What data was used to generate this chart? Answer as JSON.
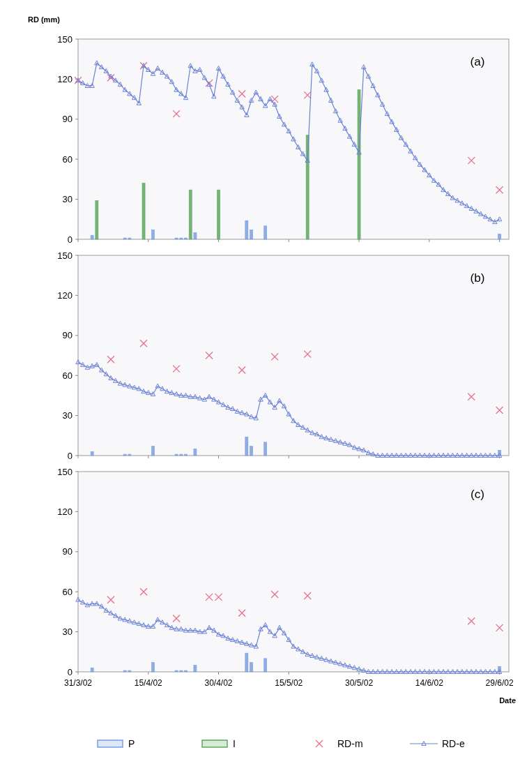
{
  "chart_data": [
    {
      "type": "line",
      "ylabel": "RD (mm)",
      "annotations": [
        "(a)"
      ],
      "xlim": [
        "2002-03-31",
        "2002-07-01"
      ],
      "xticks": [
        {
          "value": "2002-03-31",
          "label": null
        },
        {
          "value": "2002-04-15",
          "label": null
        },
        {
          "value": "2002-04-30",
          "label": null
        },
        {
          "value": "2002-05-15",
          "label": null
        },
        {
          "value": "2002-05-30",
          "label": null
        },
        {
          "value": "2002-06-14",
          "label": null
        },
        {
          "value": "2002-06-29",
          "label": null
        }
      ],
      "ylim": [
        0,
        150
      ],
      "yticks": [
        0,
        30,
        60,
        90,
        120,
        150
      ],
      "tick_labels": "y",
      "legend": "bottom",
      "x": [
        "2002-03-31",
        "2002-04-01",
        "2002-04-02",
        "2002-04-03",
        "2002-04-04",
        "2002-04-05",
        "2002-04-06",
        "2002-04-07",
        "2002-04-08",
        "2002-04-09",
        "2002-04-10",
        "2002-04-11",
        "2002-04-12",
        "2002-04-13",
        "2002-04-14",
        "2002-04-15",
        "2002-04-16",
        "2002-04-17",
        "2002-04-18",
        "2002-04-19",
        "2002-04-20",
        "2002-04-21",
        "2002-04-22",
        "2002-04-23",
        "2002-04-24",
        "2002-04-25",
        "2002-04-26",
        "2002-04-27",
        "2002-04-28",
        "2002-04-29",
        "2002-04-30",
        "2002-05-01",
        "2002-05-02",
        "2002-05-03",
        "2002-05-04",
        "2002-05-05",
        "2002-05-06",
        "2002-05-07",
        "2002-05-08",
        "2002-05-09",
        "2002-05-10",
        "2002-05-11",
        "2002-05-12",
        "2002-05-13",
        "2002-05-14",
        "2002-05-15",
        "2002-05-16",
        "2002-05-17",
        "2002-05-18",
        "2002-05-19",
        "2002-05-20",
        "2002-05-21",
        "2002-05-22",
        "2002-05-23",
        "2002-05-24",
        "2002-05-25",
        "2002-05-26",
        "2002-05-27",
        "2002-05-28",
        "2002-05-29",
        "2002-05-30",
        "2002-05-31",
        "2002-06-01",
        "2002-06-02",
        "2002-06-03",
        "2002-06-04",
        "2002-06-05",
        "2002-06-06",
        "2002-06-07",
        "2002-06-08",
        "2002-06-09",
        "2002-06-10",
        "2002-06-11",
        "2002-06-12",
        "2002-06-13",
        "2002-06-14",
        "2002-06-15",
        "2002-06-16",
        "2002-06-17",
        "2002-06-18",
        "2002-06-19",
        "2002-06-20",
        "2002-06-21",
        "2002-06-22",
        "2002-06-23",
        "2002-06-24",
        "2002-06-25",
        "2002-06-26",
        "2002-06-27",
        "2002-06-28",
        "2002-06-29"
      ],
      "series": [
        {
          "name": "P",
          "type": "bar",
          "color": "#7b9fe0",
          "x": [
            "2002-04-03",
            "2002-04-10",
            "2002-04-11",
            "2002-04-16",
            "2002-04-21",
            "2002-04-22",
            "2002-04-23",
            "2002-04-25",
            "2002-05-06",
            "2002-05-07",
            "2002-05-10",
            "2002-06-29"
          ],
          "values": [
            3,
            1,
            1,
            7,
            1,
            1,
            1,
            5,
            14,
            7,
            10,
            4
          ]
        },
        {
          "name": "I",
          "type": "bar",
          "color": "#5ea85e",
          "x": [
            "2002-04-04",
            "2002-04-14",
            "2002-04-24",
            "2002-04-30",
            "2002-05-19",
            "2002-05-30"
          ],
          "values": [
            29,
            42,
            37,
            37,
            78,
            112
          ]
        },
        {
          "name": "RD-m",
          "type": "scatter",
          "marker": "cross",
          "color": "#e8708c",
          "x": [
            "2002-03-31",
            "2002-04-07",
            "2002-04-14",
            "2002-04-21",
            "2002-04-28",
            "2002-05-05",
            "2002-05-12",
            "2002-05-19",
            "2002-06-23",
            "2002-06-29"
          ],
          "values": [
            119,
            121,
            130,
            94,
            117,
            109,
            105,
            108,
            59,
            37
          ]
        },
        {
          "name": "RD-e",
          "type": "line",
          "marker": "triangle",
          "color": "#6a82d4",
          "values": [
            119,
            117,
            115,
            115,
            132,
            129,
            126,
            122,
            119,
            116,
            112,
            109,
            106,
            102,
            130,
            127,
            124,
            128,
            125,
            122,
            118,
            112,
            109,
            106,
            130,
            126,
            127,
            121,
            116,
            107,
            128,
            122,
            116,
            110,
            104,
            99,
            93,
            104,
            110,
            105,
            100,
            105,
            101,
            92,
            86,
            81,
            75,
            69,
            64,
            59,
            131,
            126,
            119,
            112,
            104,
            96,
            89,
            83,
            77,
            71,
            65,
            129,
            122,
            115,
            108,
            101,
            94,
            88,
            82,
            76,
            71,
            66,
            61,
            56,
            52,
            48,
            44,
            41,
            37,
            34,
            31,
            29,
            27,
            25,
            23,
            21,
            19,
            17,
            15,
            13,
            15
          ]
        }
      ]
    },
    {
      "type": "line",
      "annotations": [
        "(b)"
      ],
      "xlim": [
        "2002-03-31",
        "2002-07-01"
      ],
      "xticks": [
        {
          "value": "2002-03-31",
          "label": null
        },
        {
          "value": "2002-04-15",
          "label": null
        },
        {
          "value": "2002-04-30",
          "label": null
        },
        {
          "value": "2002-05-15",
          "label": null
        },
        {
          "value": "2002-05-30",
          "label": null
        },
        {
          "value": "2002-06-14",
          "label": null
        },
        {
          "value": "2002-06-29",
          "label": null
        }
      ],
      "ylim": [
        0,
        150
      ],
      "yticks": [
        0,
        30,
        60,
        90,
        120,
        150
      ],
      "tick_labels": "y",
      "x": [
        "2002-03-31",
        "2002-04-01",
        "2002-04-02",
        "2002-04-03",
        "2002-04-04",
        "2002-04-05",
        "2002-04-06",
        "2002-04-07",
        "2002-04-08",
        "2002-04-09",
        "2002-04-10",
        "2002-04-11",
        "2002-04-12",
        "2002-04-13",
        "2002-04-14",
        "2002-04-15",
        "2002-04-16",
        "2002-04-17",
        "2002-04-18",
        "2002-04-19",
        "2002-04-20",
        "2002-04-21",
        "2002-04-22",
        "2002-04-23",
        "2002-04-24",
        "2002-04-25",
        "2002-04-26",
        "2002-04-27",
        "2002-04-28",
        "2002-04-29",
        "2002-04-30",
        "2002-05-01",
        "2002-05-02",
        "2002-05-03",
        "2002-05-04",
        "2002-05-05",
        "2002-05-06",
        "2002-05-07",
        "2002-05-08",
        "2002-05-09",
        "2002-05-10",
        "2002-05-11",
        "2002-05-12",
        "2002-05-13",
        "2002-05-14",
        "2002-05-15",
        "2002-05-16",
        "2002-05-17",
        "2002-05-18",
        "2002-05-19",
        "2002-05-20",
        "2002-05-21",
        "2002-05-22",
        "2002-05-23",
        "2002-05-24",
        "2002-05-25",
        "2002-05-26",
        "2002-05-27",
        "2002-05-28",
        "2002-05-29",
        "2002-05-30",
        "2002-05-31",
        "2002-06-01",
        "2002-06-02",
        "2002-06-03",
        "2002-06-04",
        "2002-06-05",
        "2002-06-06",
        "2002-06-07",
        "2002-06-08",
        "2002-06-09",
        "2002-06-10",
        "2002-06-11",
        "2002-06-12",
        "2002-06-13",
        "2002-06-14",
        "2002-06-15",
        "2002-06-16",
        "2002-06-17",
        "2002-06-18",
        "2002-06-19",
        "2002-06-20",
        "2002-06-21",
        "2002-06-22",
        "2002-06-23",
        "2002-06-24",
        "2002-06-25",
        "2002-06-26",
        "2002-06-27",
        "2002-06-28",
        "2002-06-29"
      ],
      "series": [
        {
          "type": "bar",
          "color": "#7b9fe0",
          "x": [
            "2002-04-03",
            "2002-04-10",
            "2002-04-11",
            "2002-04-16",
            "2002-04-21",
            "2002-04-22",
            "2002-04-23",
            "2002-04-25",
            "2002-05-06",
            "2002-05-07",
            "2002-05-10",
            "2002-06-29"
          ],
          "values": [
            3,
            1,
            1,
            7,
            1,
            1,
            1,
            5,
            14,
            7,
            10,
            4
          ]
        },
        {
          "type": "scatter",
          "marker": "cross",
          "color": "#e8708c",
          "x": [
            "2002-04-07",
            "2002-04-14",
            "2002-04-21",
            "2002-04-28",
            "2002-05-05",
            "2002-05-12",
            "2002-05-19",
            "2002-06-23",
            "2002-06-29"
          ],
          "values": [
            72,
            84,
            65,
            75,
            64,
            74,
            76,
            44,
            34
          ]
        },
        {
          "type": "line",
          "marker": "triangle",
          "color": "#6a82d4",
          "values": [
            70,
            68,
            66,
            67,
            68,
            64,
            61,
            58,
            56,
            54,
            53,
            52,
            51,
            50,
            48,
            47,
            46,
            52,
            50,
            48,
            47,
            46,
            45,
            45,
            44,
            44,
            43,
            42,
            44,
            42,
            40,
            38,
            36,
            35,
            33,
            32,
            31,
            29,
            28,
            42,
            45,
            40,
            36,
            41,
            37,
            31,
            26,
            23,
            21,
            19,
            17,
            16,
            14,
            13,
            12,
            11,
            10,
            9,
            8,
            6,
            5,
            4,
            2,
            1,
            0,
            0,
            0,
            0,
            0,
            0,
            0,
            0,
            0,
            0,
            0,
            0,
            0,
            0,
            0,
            0,
            0,
            0,
            0,
            0,
            0,
            0,
            0,
            0,
            0,
            0,
            0
          ]
        }
      ]
    },
    {
      "type": "line",
      "xlabel": "Date",
      "annotations": [
        "(c)"
      ],
      "xlim": [
        "2002-03-31",
        "2002-07-01"
      ],
      "xticks": [
        {
          "value": "2002-03-31",
          "label": "31/3/02"
        },
        {
          "value": "2002-04-15",
          "label": "15/4/02"
        },
        {
          "value": "2002-04-30",
          "label": "30/4/02"
        },
        {
          "value": "2002-05-15",
          "label": "15/5/02"
        },
        {
          "value": "2002-05-30",
          "label": "30/5/02"
        },
        {
          "value": "2002-06-14",
          "label": "14/6/02"
        },
        {
          "value": "2002-06-29",
          "label": "29/6/02"
        }
      ],
      "ylim": [
        0,
        150
      ],
      "yticks": [
        0,
        30,
        60,
        90,
        120,
        150
      ],
      "x": [
        "2002-03-31",
        "2002-04-01",
        "2002-04-02",
        "2002-04-03",
        "2002-04-04",
        "2002-04-05",
        "2002-04-06",
        "2002-04-07",
        "2002-04-08",
        "2002-04-09",
        "2002-04-10",
        "2002-04-11",
        "2002-04-12",
        "2002-04-13",
        "2002-04-14",
        "2002-04-15",
        "2002-04-16",
        "2002-04-17",
        "2002-04-18",
        "2002-04-19",
        "2002-04-20",
        "2002-04-21",
        "2002-04-22",
        "2002-04-23",
        "2002-04-24",
        "2002-04-25",
        "2002-04-26",
        "2002-04-27",
        "2002-04-28",
        "2002-04-29",
        "2002-04-30",
        "2002-05-01",
        "2002-05-02",
        "2002-05-03",
        "2002-05-04",
        "2002-05-05",
        "2002-05-06",
        "2002-05-07",
        "2002-05-08",
        "2002-05-09",
        "2002-05-10",
        "2002-05-11",
        "2002-05-12",
        "2002-05-13",
        "2002-05-14",
        "2002-05-15",
        "2002-05-16",
        "2002-05-17",
        "2002-05-18",
        "2002-05-19",
        "2002-05-20",
        "2002-05-21",
        "2002-05-22",
        "2002-05-23",
        "2002-05-24",
        "2002-05-25",
        "2002-05-26",
        "2002-05-27",
        "2002-05-28",
        "2002-05-29",
        "2002-05-30",
        "2002-05-31",
        "2002-06-01",
        "2002-06-02",
        "2002-06-03",
        "2002-06-04",
        "2002-06-05",
        "2002-06-06",
        "2002-06-07",
        "2002-06-08",
        "2002-06-09",
        "2002-06-10",
        "2002-06-11",
        "2002-06-12",
        "2002-06-13",
        "2002-06-14",
        "2002-06-15",
        "2002-06-16",
        "2002-06-17",
        "2002-06-18",
        "2002-06-19",
        "2002-06-20",
        "2002-06-21",
        "2002-06-22",
        "2002-06-23",
        "2002-06-24",
        "2002-06-25",
        "2002-06-26",
        "2002-06-27",
        "2002-06-28",
        "2002-06-29"
      ],
      "series": [
        {
          "type": "bar",
          "color": "#7b9fe0",
          "x": [
            "2002-04-03",
            "2002-04-10",
            "2002-04-11",
            "2002-04-16",
            "2002-04-21",
            "2002-04-22",
            "2002-04-23",
            "2002-04-25",
            "2002-05-06",
            "2002-05-07",
            "2002-05-10",
            "2002-06-29"
          ],
          "values": [
            3,
            1,
            1,
            7,
            1,
            1,
            1,
            5,
            14,
            7,
            10,
            4
          ]
        },
        {
          "type": "scatter",
          "marker": "cross",
          "color": "#e8708c",
          "x": [
            "2002-04-07",
            "2002-04-14",
            "2002-04-21",
            "2002-04-28",
            "2002-04-30",
            "2002-05-05",
            "2002-05-12",
            "2002-05-19",
            "2002-06-23",
            "2002-06-29"
          ],
          "values": [
            54,
            60,
            40,
            56,
            56,
            44,
            58,
            57,
            38,
            33
          ]
        },
        {
          "type": "line",
          "marker": "triangle",
          "color": "#6a82d4",
          "values": [
            54,
            52,
            50,
            51,
            51,
            49,
            46,
            44,
            42,
            40,
            39,
            38,
            37,
            36,
            35,
            34,
            34,
            39,
            37,
            35,
            33,
            32,
            32,
            31,
            31,
            31,
            30,
            30,
            33,
            31,
            28,
            27,
            25,
            24,
            23,
            22,
            21,
            20,
            19,
            32,
            35,
            30,
            27,
            33,
            29,
            24,
            19,
            17,
            15,
            13,
            12,
            11,
            10,
            9,
            8,
            7,
            6,
            5,
            4,
            3,
            2,
            1,
            0,
            0,
            0,
            0,
            0,
            0,
            0,
            0,
            0,
            0,
            0,
            0,
            0,
            0,
            0,
            0,
            0,
            0,
            0,
            0,
            0,
            0,
            0,
            0,
            0,
            0,
            0,
            0,
            0
          ]
        }
      ]
    }
  ]
}
